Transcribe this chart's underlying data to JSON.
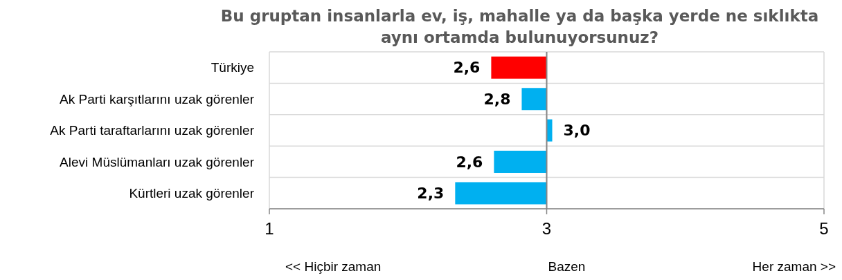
{
  "chart_data": {
    "type": "bar",
    "orientation": "horizontal",
    "title": "Bu gruptan insanlarla ev, iş, mahalle ya da başka yerde ne sıklıkta aynı ortamda bulunuyorsunuz?",
    "categories": [
      "Türkiye",
      "Ak Parti karşıtlarını uzak görenler",
      "Ak Parti taraftarlarını uzak görenler",
      "Alevi Müslümanları uzak görenler",
      "Kürtleri uzak görenler"
    ],
    "base": [
      3,
      3,
      3,
      3,
      3
    ],
    "values": [
      -0.4,
      -0.18,
      0.04,
      -0.38,
      -0.66
    ],
    "colors": [
      "#ff0000",
      "#00b0f0",
      "#00b0f0",
      "#00b0f0",
      "#00b0f0"
    ],
    "value_labels": [
      "2,6",
      "2,8",
      "3,0",
      "2,6",
      "2,3"
    ],
    "xlim": [
      1,
      5
    ],
    "xticks": [
      1,
      3,
      5
    ],
    "grid": true,
    "ref_lines": [
      {
        "axis": "x",
        "value": 3,
        "color": "#868686"
      }
    ],
    "annotations": [
      "<< Hiçbir zaman",
      "Bazen",
      "Her zaman >>"
    ]
  }
}
